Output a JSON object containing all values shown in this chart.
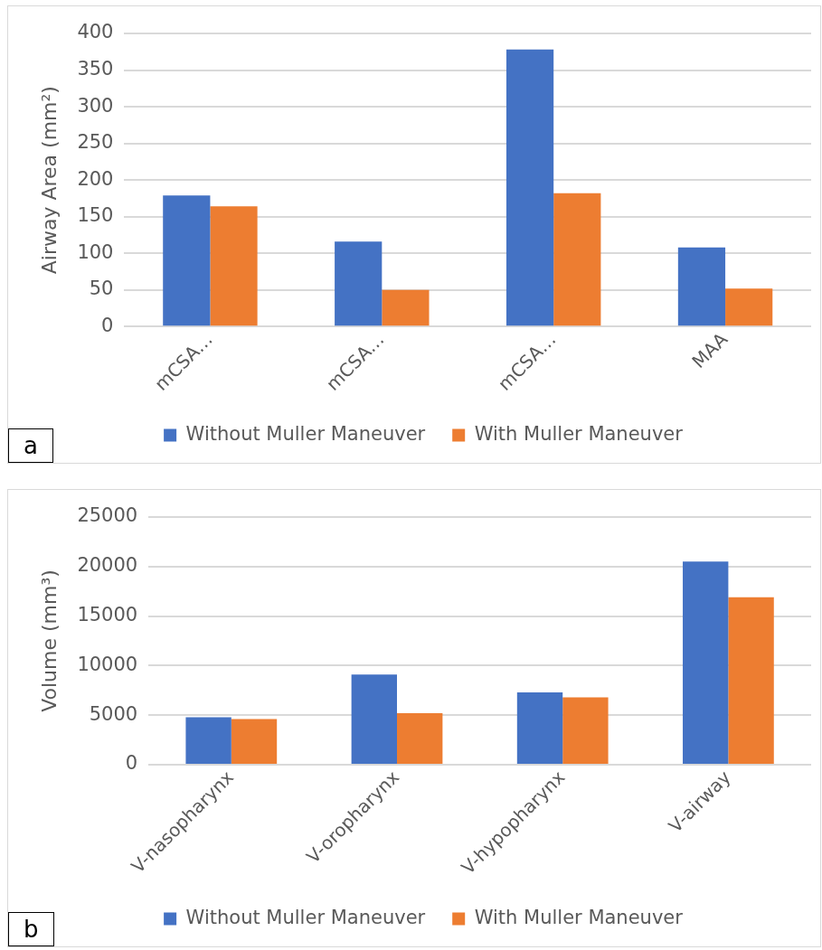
{
  "chart_data": [
    {
      "type": "bar",
      "ylabel": "Airway Area (mm²)",
      "categories": [
        "mCSA…",
        "mCSA…",
        "mCSA…",
        "MAA"
      ],
      "series": [
        {
          "name": "Without Muller Maneuver",
          "color": "#4472c4",
          "values": [
            179,
            116,
            378,
            108
          ]
        },
        {
          "name": "With Muller Maneuver",
          "color": "#ed7d31",
          "values": [
            164,
            50,
            182,
            52
          ]
        }
      ],
      "ylim": [
        0,
        400
      ],
      "yticks": [
        0,
        50,
        100,
        150,
        200,
        250,
        300,
        350,
        400
      ],
      "grid": "y",
      "legend": "bottom",
      "annotations": [
        "a"
      ]
    },
    {
      "type": "bar",
      "ylabel": "Volume (mm³)",
      "categories": [
        "V-nasopharynx",
        "V-oropharynx",
        "V-hypopharynx",
        "V-airway"
      ],
      "series": [
        {
          "name": "Without Muller Maneuver",
          "color": "#4472c4",
          "values": [
            4800,
            9100,
            7300,
            20500
          ]
        },
        {
          "name": "With Muller Maneuver",
          "color": "#ed7d31",
          "values": [
            4600,
            5200,
            6800,
            16900
          ]
        }
      ],
      "ylim": [
        0,
        25000
      ],
      "yticks": [
        0,
        5000,
        10000,
        15000,
        20000,
        25000
      ],
      "grid": "y",
      "legend": "bottom",
      "annotations": [
        "b"
      ]
    }
  ]
}
